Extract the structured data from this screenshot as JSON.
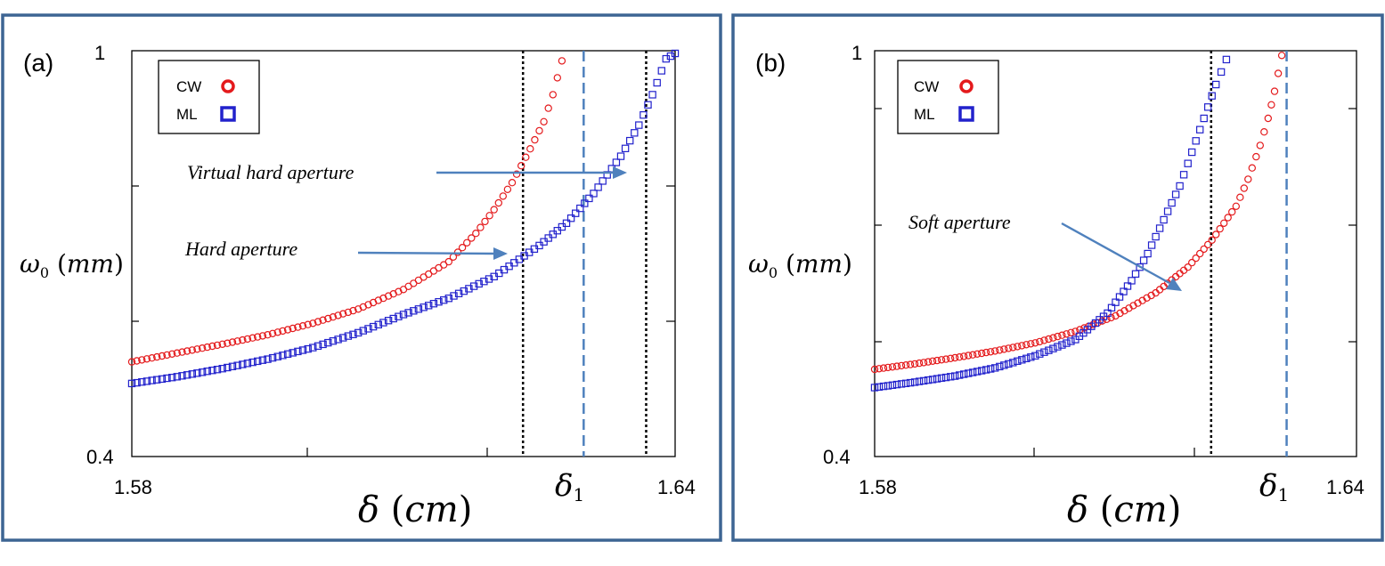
{
  "chart_data": [
    {
      "type": "scatter",
      "panel_label": "(a)",
      "xlabel": "δ (cm)",
      "ylabel": "ω0 (mm)",
      "xlim": [
        1.58,
        1.64
      ],
      "ylim": [
        0.4,
        1
      ],
      "x_tick_labels": [
        "1.58",
        "1.64"
      ],
      "y_tick_labels": [
        "1",
        "0.4"
      ],
      "x_marker_label": "δ1",
      "legend": {
        "position": "top-left",
        "entries": [
          "CW",
          "ML"
        ]
      },
      "series": [
        {
          "name": "CW",
          "marker": "circle",
          "color": "#e41a1c",
          "points": [
            [
              1.58,
              0.54
            ],
            [
              1.585,
              0.553
            ],
            [
              1.59,
              0.566
            ],
            [
              1.595,
              0.58
            ],
            [
              1.6,
              0.597
            ],
            [
              1.605,
              0.618
            ],
            [
              1.61,
              0.647
            ],
            [
              1.615,
              0.688
            ],
            [
              1.618,
              0.73
            ],
            [
              1.62,
              0.765
            ],
            [
              1.622,
              0.805
            ],
            [
              1.624,
              0.855
            ],
            [
              1.6255,
              0.895
            ],
            [
              1.6265,
              0.935
            ],
            [
              1.6275,
              0.985
            ]
          ]
        },
        {
          "name": "ML",
          "marker": "square",
          "color": "#2222cc",
          "points": [
            [
              1.58,
              0.508
            ],
            [
              1.585,
              0.518
            ],
            [
              1.59,
              0.53
            ],
            [
              1.595,
              0.544
            ],
            [
              1.6,
              0.561
            ],
            [
              1.605,
              0.583
            ],
            [
              1.61,
              0.61
            ],
            [
              1.615,
              0.634
            ],
            [
              1.62,
              0.666
            ],
            [
              1.625,
              0.712
            ],
            [
              1.628,
              0.745
            ],
            [
              1.631,
              0.789
            ],
            [
              1.634,
              0.844
            ],
            [
              1.636,
              0.89
            ],
            [
              1.6375,
              0.935
            ],
            [
              1.639,
              0.988
            ],
            [
              1.6405,
              1.0
            ]
          ]
        }
      ],
      "vertical_lines": [
        {
          "x": 1.6232,
          "style": "dotted",
          "color": "#000000"
        },
        {
          "x": 1.6299,
          "style": "dashed",
          "color": "#4f81bd"
        },
        {
          "x": 1.6368,
          "style": "dotted",
          "color": "#000000"
        }
      ],
      "annotations": [
        {
          "text": "Virtual hard aperture",
          "arrow_to": [
            1.6355,
            0.752
          ]
        },
        {
          "text": "Hard aperture",
          "arrow_to": [
            1.6222,
            0.685
          ]
        }
      ]
    },
    {
      "type": "scatter",
      "panel_label": "(b)",
      "xlabel": "δ (cm)",
      "ylabel": "ω0 (mm)",
      "xlim": [
        1.58,
        1.64
      ],
      "ylim": [
        0.4,
        1
      ],
      "x_tick_labels": [
        "1.58",
        "1.64"
      ],
      "y_tick_labels": [
        "1",
        "0.4"
      ],
      "x_marker_label": "δ1",
      "legend": {
        "position": "top-left",
        "entries": [
          "CW",
          "ML"
        ]
      },
      "series": [
        {
          "name": "CW",
          "marker": "circle",
          "color": "#e41a1c",
          "points": [
            [
              1.58,
              0.529
            ],
            [
              1.585,
              0.537
            ],
            [
              1.59,
              0.546
            ],
            [
              1.595,
              0.556
            ],
            [
              1.6,
              0.568
            ],
            [
              1.605,
              0.585
            ],
            [
              1.61,
              0.608
            ],
            [
              1.615,
              0.642
            ],
            [
              1.619,
              0.68
            ],
            [
              1.622,
              0.72
            ],
            [
              1.625,
              0.77
            ],
            [
              1.6265,
              0.81
            ],
            [
              1.628,
              0.86
            ],
            [
              1.629,
              0.9
            ],
            [
              1.6298,
              0.94
            ],
            [
              1.6307,
              0.993
            ]
          ]
        },
        {
          "name": "ML",
          "marker": "square",
          "color": "#2222cc",
          "points": [
            [
              1.58,
              0.502
            ],
            [
              1.585,
              0.51
            ],
            [
              1.59,
              0.519
            ],
            [
              1.595,
              0.531
            ],
            [
              1.6,
              0.549
            ],
            [
              1.605,
              0.573
            ],
            [
              1.609,
              0.612
            ],
            [
              1.612,
              0.66
            ],
            [
              1.614,
              0.7
            ],
            [
              1.616,
              0.75
            ],
            [
              1.618,
              0.8
            ],
            [
              1.6195,
              0.85
            ],
            [
              1.621,
              0.9
            ],
            [
              1.6225,
              0.95
            ],
            [
              1.6238,
              0.987
            ]
          ]
        }
      ],
      "vertical_lines": [
        {
          "x": 1.6219,
          "style": "dotted",
          "color": "#000000"
        },
        {
          "x": 1.6313,
          "style": "dashed",
          "color": "#4f81bd"
        }
      ],
      "annotations": [
        {
          "text": "Soft aperture",
          "arrow_to": [
            1.6205,
            0.644
          ]
        }
      ]
    }
  ]
}
